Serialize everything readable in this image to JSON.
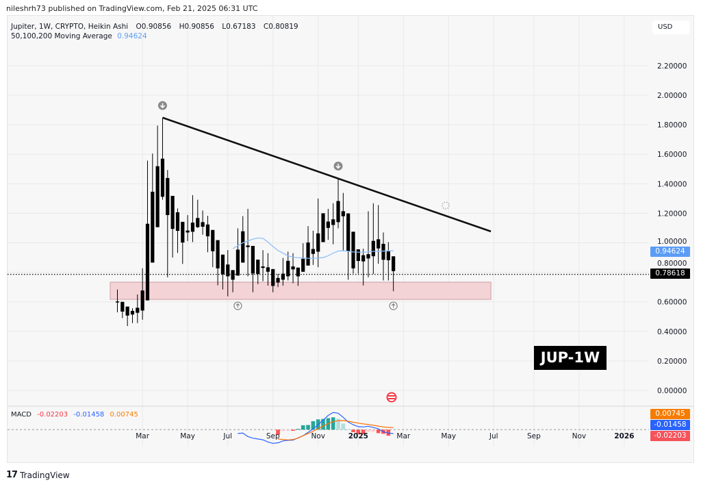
{
  "header": {
    "published": "nileshrh73 published on TradingView.com, Feb 21, 2025 06:31 UTC"
  },
  "legend": {
    "symbol": "Jupiter, 1W, CRYPTO, Heikin Ashi",
    "open": "O0.90856",
    "high": "H0.90856",
    "low": "L0.67183",
    "close": "C0.80819",
    "ma_label": "50,100,200 Moving Average",
    "ma_value": "0.94624"
  },
  "currency": "USD",
  "badge": "JUP-1W",
  "footer": {
    "logo_text": "TradingView"
  },
  "price_tags": {
    "ma": "0.94624",
    "last": "0.78618"
  },
  "macd": {
    "label": "MACD",
    "hist_value": "-0.02203",
    "macd_value": "-0.01458",
    "signal_value": "0.00745"
  },
  "colors": {
    "candle": "#000000",
    "ma": "#90bff9",
    "macd": "#2962ff",
    "signal": "#ff6d00",
    "hist_up_strong": "#26a69a",
    "hist_up_weak": "#b2dfdb",
    "hist_dn_strong": "#ff5252",
    "hist_dn_weak": "#ffcdd2",
    "support_zone": "#f4d3d6",
    "ma_tag": "#5b9cf6",
    "last_tag": "#000000",
    "signal_tag": "#f57c00",
    "macd_tag": "#2962ff",
    "hist_tag": "#f5525a"
  },
  "chart_data": {
    "type": "candlestick",
    "style": "Heikin Ashi",
    "yaxis": {
      "ticks": [
        "2.20000",
        "2.00000",
        "1.80000",
        "1.60000",
        "1.40000",
        "1.20000",
        "1.00000",
        "0.80000",
        "0.60000",
        "0.40000",
        "0.20000",
        "0.00000"
      ],
      "range": [
        -0.05,
        2.45
      ]
    },
    "xaxis": {
      "ticks": [
        {
          "label": "Mar",
          "date": "2024-03-04"
        },
        {
          "label": "May",
          "date": "2024-05-06"
        },
        {
          "label": "Jul",
          "date": "2024-07-01"
        },
        {
          "label": "Sep",
          "date": "2024-09-02"
        },
        {
          "label": "Nov",
          "date": "2024-11-04"
        },
        {
          "label": "2025",
          "date": "2024-12-30"
        },
        {
          "label": "Mar",
          "date": "2025-03-03"
        },
        {
          "label": "May",
          "date": "2025-05-05"
        },
        {
          "label": "Jul",
          "date": "2025-07-07"
        },
        {
          "label": "Sep",
          "date": "2025-09-01"
        },
        {
          "label": "Nov",
          "date": "2025-11-03"
        },
        {
          "label": "2026",
          "date": "2026-01-05"
        }
      ]
    },
    "grid": true,
    "candles": [
      [
        "2024-01-29",
        0.603,
        0.684,
        0.529,
        0.598
      ],
      [
        "2024-02-05",
        0.6,
        0.6,
        0.49,
        0.534
      ],
      [
        "2024-02-12",
        0.568,
        0.568,
        0.436,
        0.507
      ],
      [
        "2024-02-19",
        0.539,
        0.557,
        0.456,
        0.514
      ],
      [
        "2024-02-26",
        0.56,
        0.65,
        0.456,
        0.526
      ],
      [
        "2024-03-04",
        0.677,
        0.827,
        0.479,
        0.541
      ],
      [
        "2024-03-11",
        1.129,
        1.557,
        0.61,
        0.61
      ],
      [
        "2024-03-18",
        1.346,
        1.605,
        0.866,
        0.866
      ],
      [
        "2024-03-25",
        1.519,
        1.794,
        1.106,
        1.106
      ],
      [
        "2024-04-01",
        1.57,
        1.848,
        1.292,
        1.312
      ],
      [
        "2024-04-08",
        1.439,
        1.493,
        0.766,
        1.188
      ],
      [
        "2024-04-15",
        1.318,
        1.318,
        0.9,
        1.094
      ],
      [
        "2024-04-22",
        1.207,
        1.233,
        0.931,
        1.081
      ],
      [
        "2024-04-29",
        1.142,
        1.142,
        0.857,
        1.002
      ],
      [
        "2024-05-06",
        1.083,
        1.188,
        1.012,
        1.07
      ],
      [
        "2024-05-13",
        1.137,
        1.323,
        1.005,
        1.075
      ],
      [
        "2024-05-20",
        1.168,
        1.292,
        1.101,
        1.106
      ],
      [
        "2024-05-27",
        1.14,
        1.219,
        1.055,
        1.109
      ],
      [
        "2024-06-03",
        1.124,
        1.183,
        0.936,
        1.044
      ],
      [
        "2024-06-10",
        1.087,
        1.087,
        0.835,
        0.943
      ],
      [
        "2024-06-17",
        1.018,
        1.018,
        0.712,
        0.827
      ],
      [
        "2024-06-24",
        0.92,
        0.92,
        0.684,
        0.786
      ],
      [
        "2024-07-01",
        0.853,
        0.951,
        0.637,
        0.773
      ],
      [
        "2024-07-08",
        0.815,
        0.815,
        0.665,
        0.75
      ],
      [
        "2024-07-15",
        0.954,
        1.098,
        0.778,
        0.778
      ],
      [
        "2024-07-22",
        1.078,
        1.181,
        0.866,
        0.866
      ],
      [
        "2024-07-29",
        0.982,
        1.23,
        0.773,
        0.971
      ],
      [
        "2024-08-05",
        0.979,
        0.979,
        0.665,
        0.792
      ],
      [
        "2024-08-12",
        0.886,
        0.886,
        0.72,
        0.789
      ],
      [
        "2024-08-19",
        0.84,
        0.95,
        0.74,
        0.83
      ],
      [
        "2024-08-26",
        0.834,
        0.93,
        0.71,
        0.804
      ],
      [
        "2024-09-02",
        0.822,
        0.822,
        0.665,
        0.708
      ],
      [
        "2024-09-09",
        0.762,
        0.79,
        0.7,
        0.731
      ],
      [
        "2024-09-16",
        0.791,
        0.897,
        0.71,
        0.75
      ],
      [
        "2024-09-23",
        0.878,
        0.94,
        0.745,
        0.773
      ],
      [
        "2024-09-30",
        0.84,
        0.93,
        0.726,
        0.82
      ],
      [
        "2024-10-07",
        0.832,
        0.832,
        0.708,
        0.773
      ],
      [
        "2024-10-14",
        0.892,
        0.997,
        0.804,
        0.804
      ],
      [
        "2024-10-21",
        1.002,
        1.113,
        0.846,
        0.846
      ],
      [
        "2024-10-28",
        0.958,
        1.082,
        0.85,
        0.925
      ],
      [
        "2024-11-04",
        1.064,
        1.3,
        0.835,
        0.94
      ],
      [
        "2024-11-11",
        1.2,
        1.2,
        1.005,
        1.005
      ],
      [
        "2024-11-18",
        1.144,
        1.23,
        1.02,
        1.101
      ],
      [
        "2024-11-25",
        1.159,
        1.268,
        0.99,
        1.121
      ],
      [
        "2024-12-02",
        1.283,
        1.44,
        1.098,
        1.14
      ],
      [
        "2024-12-09",
        1.214,
        1.338,
        0.943,
        1.18
      ],
      [
        "2024-12-16",
        1.199,
        1.199,
        0.75,
        0.943
      ],
      [
        "2024-12-23",
        1.075,
        1.075,
        0.792,
        0.827
      ],
      [
        "2024-12-30",
        0.956,
        0.956,
        0.792,
        0.877
      ],
      [
        "2025-01-06",
        0.916,
        0.96,
        0.711,
        0.874
      ],
      [
        "2025-01-13",
        0.923,
        1.214,
        0.766,
        0.894
      ],
      [
        "2025-01-20",
        1.013,
        1.268,
        0.789,
        0.909
      ],
      [
        "2025-01-27",
        1.024,
        1.256,
        0.858,
        0.962
      ],
      [
        "2025-02-03",
        0.993,
        1.07,
        0.745,
        0.885
      ],
      [
        "2025-02-10",
        0.943,
        1.005,
        0.745,
        0.882
      ],
      [
        "2025-02-17",
        0.90856,
        0.90856,
        0.67183,
        0.80819
      ]
    ],
    "moving_average": [
      [
        "2024-07-08",
        0.96
      ],
      [
        "2024-07-22",
        1.0
      ],
      [
        "2024-08-05",
        1.025
      ],
      [
        "2024-08-12",
        1.033
      ],
      [
        "2024-08-19",
        1.03
      ],
      [
        "2024-08-26",
        1.005
      ],
      [
        "2024-09-02",
        0.975
      ],
      [
        "2024-09-09",
        0.948
      ],
      [
        "2024-09-16",
        0.93
      ],
      [
        "2024-09-23",
        0.912
      ],
      [
        "2024-09-30",
        0.902
      ],
      [
        "2024-10-14",
        0.896
      ],
      [
        "2024-10-28",
        0.894
      ],
      [
        "2024-11-11",
        0.9
      ],
      [
        "2024-11-18",
        0.912
      ],
      [
        "2024-11-25",
        0.93
      ],
      [
        "2024-12-02",
        0.944
      ],
      [
        "2024-12-09",
        0.947
      ],
      [
        "2024-12-23",
        0.938
      ],
      [
        "2025-01-06",
        0.935
      ],
      [
        "2025-01-20",
        0.942
      ],
      [
        "2025-02-17",
        0.94624
      ]
    ],
    "last_price": 0.78618,
    "trendline": [
      [
        "2024-04-01",
        1.848
      ],
      [
        "2025-07-03",
        1.077
      ]
    ],
    "support_zone": {
      "from": "2024-01-19",
      "to": "2025-07-03",
      "low": 0.617,
      "high": 0.733
    },
    "markers": [
      {
        "type": "arrow-down",
        "date": "2024-04-01",
        "value": 1.93
      },
      {
        "type": "arrow-down",
        "date": "2024-12-02",
        "value": 1.52
      },
      {
        "type": "arrow-up",
        "date": "2024-07-15",
        "value": 0.573
      },
      {
        "type": "arrow-up",
        "date": "2025-02-17",
        "value": 0.573
      }
    ],
    "macd": {
      "macd_line": [
        [
          "2024-07-15",
          -0.014
        ],
        [
          "2024-07-22",
          -0.0125
        ],
        [
          "2024-07-29",
          -0.025
        ],
        [
          "2024-08-05",
          -0.031
        ],
        [
          "2024-08-12",
          -0.034
        ],
        [
          "2024-08-19",
          -0.037
        ],
        [
          "2024-08-26",
          -0.045
        ],
        [
          "2024-09-02",
          -0.05
        ],
        [
          "2024-09-09",
          -0.048
        ],
        [
          "2024-09-16",
          -0.041
        ],
        [
          "2024-09-23",
          -0.039
        ],
        [
          "2024-09-30",
          -0.038
        ],
        [
          "2024-10-07",
          -0.03
        ],
        [
          "2024-10-14",
          -0.022
        ],
        [
          "2024-10-21",
          -0.01
        ],
        [
          "2024-10-28",
          0.003
        ],
        [
          "2024-11-04",
          0.018
        ],
        [
          "2024-11-11",
          0.035
        ],
        [
          "2024-11-18",
          0.052
        ],
        [
          "2024-11-25",
          0.063
        ],
        [
          "2024-12-02",
          0.06
        ],
        [
          "2024-12-09",
          0.045
        ],
        [
          "2024-12-16",
          0.028
        ],
        [
          "2024-12-23",
          0.018
        ],
        [
          "2024-12-30",
          0.011
        ],
        [
          "2025-01-06",
          0.01
        ],
        [
          "2025-01-13",
          0.0125
        ],
        [
          "2025-01-20",
          0.008
        ],
        [
          "2025-01-27",
          0.003
        ],
        [
          "2025-02-03",
          -0.008
        ],
        [
          "2025-02-10",
          -0.012
        ],
        [
          "2025-02-17",
          -0.01458
        ]
      ],
      "signal_line": [
        [
          "2024-09-09",
          -0.034
        ],
        [
          "2024-09-16",
          -0.036
        ],
        [
          "2024-09-23",
          -0.0375
        ],
        [
          "2024-09-30",
          -0.036
        ],
        [
          "2024-10-07",
          -0.031
        ],
        [
          "2024-10-14",
          -0.022
        ],
        [
          "2024-10-21",
          -0.014
        ],
        [
          "2024-10-28",
          -0.006
        ],
        [
          "2024-11-04",
          0.004
        ],
        [
          "2024-11-11",
          0.013
        ],
        [
          "2024-11-18",
          0.022
        ],
        [
          "2024-11-25",
          0.029
        ],
        [
          "2024-12-02",
          0.033
        ],
        [
          "2024-12-09",
          0.033
        ],
        [
          "2024-12-16",
          0.031
        ],
        [
          "2024-12-23",
          0.027
        ],
        [
          "2024-12-30",
          0.024
        ],
        [
          "2025-01-06",
          0.021
        ],
        [
          "2025-01-13",
          0.019
        ],
        [
          "2025-01-20",
          0.016
        ],
        [
          "2025-01-27",
          0.013
        ],
        [
          "2025-02-03",
          0.01
        ],
        [
          "2025-02-10",
          0.0085
        ],
        [
          "2025-02-17",
          0.00745
        ]
      ],
      "histogram": [
        [
          "2024-09-09",
          -0.019
        ],
        [
          "2024-09-16",
          -0.005
        ],
        [
          "2024-09-23",
          -0.004
        ],
        [
          "2024-09-30",
          -0.004
        ],
        [
          "2024-10-07",
          0.003
        ],
        [
          "2024-10-14",
          0.016
        ],
        [
          "2024-10-21",
          0.017
        ],
        [
          "2024-10-28",
          0.031
        ],
        [
          "2024-11-04",
          0.0375
        ],
        [
          "2024-11-11",
          0.039
        ],
        [
          "2024-11-18",
          0.042
        ],
        [
          "2024-11-25",
          0.045
        ],
        [
          "2024-12-02",
          0.04
        ],
        [
          "2024-12-09",
          0.0225
        ],
        [
          "2024-12-16",
          0.001
        ],
        [
          "2024-12-23",
          -0.009
        ],
        [
          "2024-12-30",
          -0.017
        ],
        [
          "2025-01-06",
          -0.017
        ],
        [
          "2025-01-13",
          -0.008
        ],
        [
          "2025-01-20",
          -0.007
        ],
        [
          "2025-01-27",
          -0.0125
        ],
        [
          "2025-02-03",
          -0.015
        ],
        [
          "2025-02-10",
          -0.02203
        ]
      ]
    }
  }
}
